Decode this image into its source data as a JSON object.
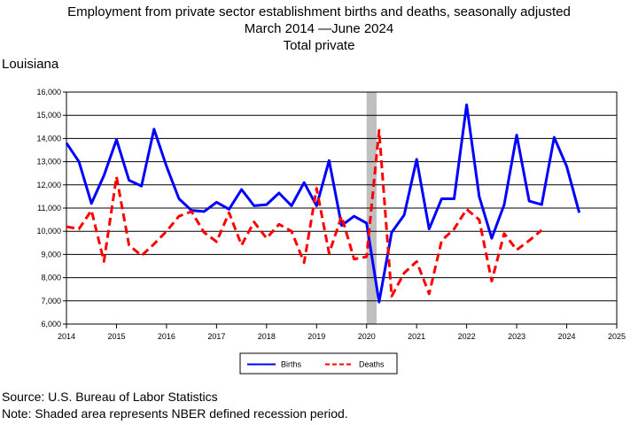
{
  "chart_data": {
    "type": "line",
    "title": "Employment from private sector establishment births and deaths, seasonally adjusted",
    "subtitle": "March 2014 —June 2024",
    "subtitle2": "Total private",
    "region": "Louisiana",
    "xlim": [
      2014,
      2025
    ],
    "ylim": [
      6000,
      16000
    ],
    "x_ticks": [
      "2014",
      "2015",
      "2016",
      "2017",
      "2018",
      "2019",
      "2020",
      "2021",
      "2022",
      "2023",
      "2024",
      "2025"
    ],
    "y_ticks": [
      "6,000",
      "7,000",
      "8,000",
      "9,000",
      "10,000",
      "11,000",
      "12,000",
      "13,000",
      "14,000",
      "15,000",
      "16,000"
    ],
    "grid": true,
    "legend_position": "bottom",
    "recession": [
      2020.0,
      2020.2
    ],
    "series": [
      {
        "name": "Births",
        "color": "#0000ff",
        "style": "solid",
        "x": [
          2014.0,
          2014.25,
          2014.5,
          2014.75,
          2015.0,
          2015.25,
          2015.5,
          2015.75,
          2016.0,
          2016.25,
          2016.5,
          2016.75,
          2017.0,
          2017.25,
          2017.5,
          2017.75,
          2018.0,
          2018.25,
          2018.5,
          2018.75,
          2019.0,
          2019.25,
          2019.5,
          2019.75,
          2020.0,
          2020.25,
          2020.5,
          2020.75,
          2021.0,
          2021.25,
          2021.5,
          2021.75,
          2022.0,
          2022.25,
          2022.5,
          2022.75,
          2023.0,
          2023.25,
          2023.5,
          2023.75,
          2024.0,
          2024.25
        ],
        "values": [
          13800,
          13000,
          11200,
          12400,
          13950,
          12200,
          11950,
          14400,
          12800,
          11400,
          10900,
          10850,
          11250,
          10950,
          11800,
          11100,
          11150,
          11650,
          11100,
          12100,
          11100,
          13050,
          10250,
          10650,
          10350,
          6950,
          9950,
          10700,
          13100,
          10100,
          11400,
          11400,
          15450,
          11500,
          9700,
          11150,
          14150,
          11300,
          11150,
          14050,
          12800,
          10800
        ]
      },
      {
        "name": "Deaths",
        "color": "#ff0000",
        "style": "dashed",
        "x": [
          2014.0,
          2014.25,
          2014.5,
          2014.75,
          2015.0,
          2015.25,
          2015.5,
          2015.75,
          2016.0,
          2016.25,
          2016.5,
          2016.75,
          2017.0,
          2017.25,
          2017.5,
          2017.75,
          2018.0,
          2018.25,
          2018.5,
          2018.75,
          2019.0,
          2019.25,
          2019.5,
          2019.75,
          2020.0,
          2020.25,
          2020.5,
          2020.75,
          2021.0,
          2021.25,
          2021.5,
          2021.75,
          2022.0,
          2022.25,
          2022.5,
          2022.75,
          2023.0,
          2023.25,
          2023.5
        ],
        "values": [
          10200,
          10100,
          10900,
          8700,
          12350,
          9400,
          8950,
          9450,
          10000,
          10650,
          10850,
          9950,
          9550,
          10800,
          9400,
          10400,
          9700,
          10300,
          10000,
          8650,
          11850,
          9050,
          10650,
          8800,
          8900,
          14350,
          7200,
          8200,
          8700,
          7300,
          9600,
          10100,
          10950,
          10500,
          7850,
          9900,
          9200,
          9600,
          10050
        ]
      }
    ],
    "source": "Source: U.S. Bureau of Labor Statistics",
    "note": "Note: Shaded area represents NBER defined recession period."
  }
}
